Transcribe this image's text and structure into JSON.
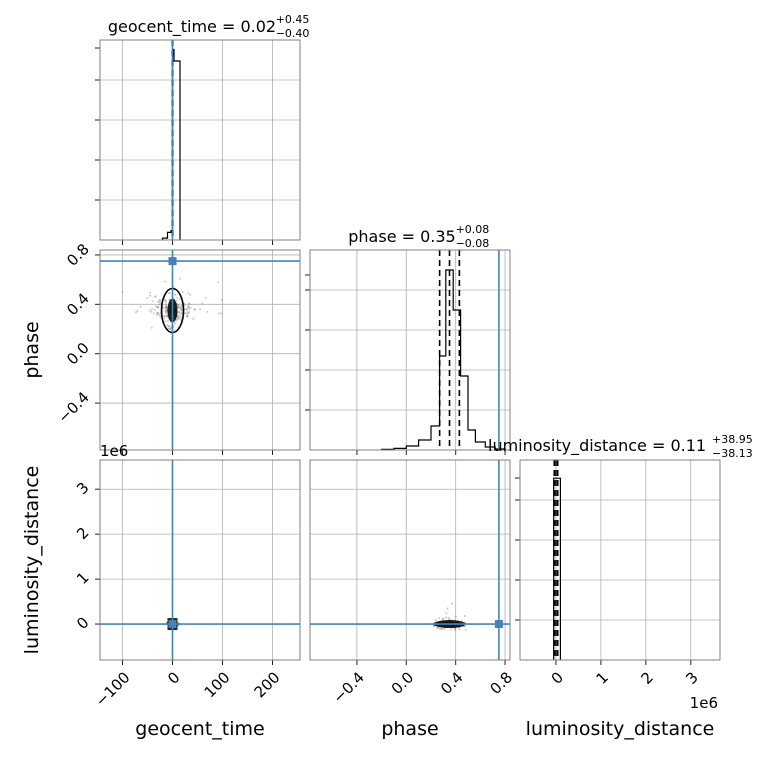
{
  "chart_data": {
    "type": "corner",
    "parameters": [
      "geocent_time",
      "phase",
      "luminosity_distance"
    ],
    "titles": [
      {
        "param": "geocent_time",
        "text": "geocent_time = 0.02",
        "upper": "+0.45",
        "lower": "−0.40"
      },
      {
        "param": "phase",
        "text": "phase = 0.35",
        "upper": "+0.08",
        "lower": "−0.08"
      },
      {
        "param": "luminosity_distance",
        "text": "luminosity_distance = 0.11",
        "upper": "+38.95",
        "lower": "−38.13"
      }
    ],
    "axis_labels": {
      "geocent_time": "geocent_time",
      "phase": "phase",
      "luminosity_distance": "luminosity_distance"
    },
    "ranges": {
      "geocent_time": [
        -145,
        255
      ],
      "phase": [
        -0.78,
        0.84
      ],
      "luminosity_distance": [
        -0.8,
        3.65
      ]
    },
    "ticks": {
      "geocent_time": [
        -100,
        0,
        100,
        200
      ],
      "phase_x": [
        -0.4,
        0.0,
        0.4,
        0.8
      ],
      "phase_y": [
        -0.4,
        0.0,
        0.4,
        0.8
      ],
      "luminosity_distance": [
        0,
        1,
        2,
        3
      ]
    },
    "tick_labels": {
      "geocent_time": [
        "−100",
        "0",
        "100",
        "200"
      ],
      "phase_x": [
        "−0.4",
        "0.0",
        "0.4",
        "0.8"
      ],
      "phase_y": [
        "−0.4",
        "0.0",
        "0.4",
        "0.8"
      ],
      "luminosity_distance": [
        "0",
        "1",
        "2",
        "3"
      ]
    },
    "offset_text": "1e6",
    "truths": {
      "geocent_time": 0.0,
      "phase": 0.75,
      "luminosity_distance": 0.0
    },
    "quantiles": {
      "geocent_time": [
        -0.38,
        0.02,
        0.47
      ],
      "phase": [
        0.27,
        0.35,
        0.43
      ],
      "luminosity_distance": [
        -0.038,
        0.0,
        0.039
      ]
    },
    "histograms": {
      "geocent_time": {
        "edges": [
          -20,
          -10,
          -3,
          0,
          3,
          15
        ],
        "counts": [
          1,
          4,
          5,
          100,
          94
        ],
        "ymax": 105
      },
      "phase": {
        "edges": [
          -0.2,
          -0.1,
          0.0,
          0.1,
          0.2,
          0.27,
          0.32,
          0.38,
          0.44,
          0.5,
          0.56,
          0.64,
          0.72,
          0.8
        ],
        "counts": [
          0.3,
          0.8,
          2,
          5,
          12,
          47,
          90,
          70,
          37,
          10,
          4,
          1.5,
          0.5
        ],
        "ymax": 100
      },
      "luminosity_distance": {
        "edges": [
          -0.05,
          0.05,
          0.1
        ],
        "counts": [
          100,
          100
        ],
        "ymax": 110
      }
    },
    "grid": true,
    "truth_color": "#4682b4"
  }
}
